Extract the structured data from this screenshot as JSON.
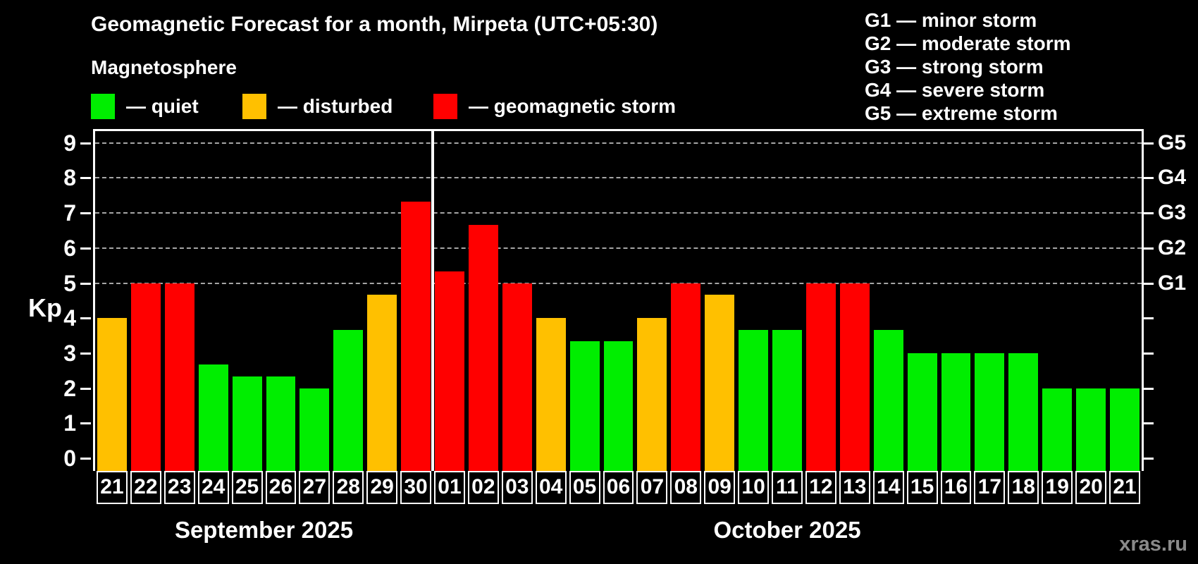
{
  "title": "Geomagnetic Forecast for a month, Mirpeta (UTC+05:30)",
  "subtitle": "Magnetosphere",
  "legend": [
    {
      "level": "quiet",
      "label": "— quiet"
    },
    {
      "level": "disturbed",
      "label": "— disturbed"
    },
    {
      "level": "storm",
      "label": "— geomagnetic storm"
    }
  ],
  "g_legend": [
    "G1 — minor storm",
    "G2 — moderate storm",
    "G3 — strong storm",
    "G4 — severe storm",
    "G5 — extreme storm"
  ],
  "colors": {
    "quiet": "#00ee00",
    "disturbed": "#ffc000",
    "storm": "#ff0000",
    "gridline": "#a6a6a6",
    "axis": "#ffffff",
    "watermark": "#8a8a8a",
    "background": "#000000"
  },
  "watermark": "xras.ru",
  "chart_data": {
    "type": "bar",
    "title": "Geomagnetic Forecast for a month, Mirpeta (UTC+05:30)",
    "xlabel": "",
    "ylabel": "Kp",
    "ylim": [
      0,
      9.4
    ],
    "yticks": [
      0,
      1,
      2,
      3,
      4,
      5,
      6,
      7,
      8,
      9
    ],
    "gridlines_at": [
      5,
      6,
      7,
      8,
      9
    ],
    "grid": "dashed, G-storm levels only",
    "legend_position": "top-left",
    "right_axis_labels": [
      {
        "kp": 5,
        "label": "G1"
      },
      {
        "kp": 6,
        "label": "G2"
      },
      {
        "kp": 7,
        "label": "G3"
      },
      {
        "kp": 8,
        "label": "G4"
      },
      {
        "kp": 9,
        "label": "G5"
      }
    ],
    "months": [
      {
        "name": "September 2025",
        "bars": [
          {
            "day": "21",
            "kp": 4.0,
            "level": "disturbed"
          },
          {
            "day": "22",
            "kp": 5.0,
            "level": "storm"
          },
          {
            "day": "23",
            "kp": 5.0,
            "level": "storm"
          },
          {
            "day": "24",
            "kp": 2.67,
            "level": "quiet"
          },
          {
            "day": "25",
            "kp": 2.33,
            "level": "quiet"
          },
          {
            "day": "26",
            "kp": 2.33,
            "level": "quiet"
          },
          {
            "day": "27",
            "kp": 2.0,
            "level": "quiet"
          },
          {
            "day": "28",
            "kp": 3.67,
            "level": "quiet"
          },
          {
            "day": "29",
            "kp": 4.67,
            "level": "disturbed"
          },
          {
            "day": "30",
            "kp": 7.33,
            "level": "storm"
          }
        ]
      },
      {
        "name": "October 2025",
        "bars": [
          {
            "day": "01",
            "kp": 5.33,
            "level": "storm"
          },
          {
            "day": "02",
            "kp": 6.67,
            "level": "storm"
          },
          {
            "day": "03",
            "kp": 5.0,
            "level": "storm"
          },
          {
            "day": "04",
            "kp": 4.0,
            "level": "disturbed"
          },
          {
            "day": "05",
            "kp": 3.33,
            "level": "quiet"
          },
          {
            "day": "06",
            "kp": 3.33,
            "level": "quiet"
          },
          {
            "day": "07",
            "kp": 4.0,
            "level": "disturbed"
          },
          {
            "day": "08",
            "kp": 5.0,
            "level": "storm"
          },
          {
            "day": "09",
            "kp": 4.67,
            "level": "disturbed"
          },
          {
            "day": "10",
            "kp": 3.67,
            "level": "quiet"
          },
          {
            "day": "11",
            "kp": 3.67,
            "level": "quiet"
          },
          {
            "day": "12",
            "kp": 5.0,
            "level": "storm"
          },
          {
            "day": "13",
            "kp": 5.0,
            "level": "storm"
          },
          {
            "day": "14",
            "kp": 3.67,
            "level": "quiet"
          },
          {
            "day": "15",
            "kp": 3.0,
            "level": "quiet"
          },
          {
            "day": "16",
            "kp": 3.0,
            "level": "quiet"
          },
          {
            "day": "17",
            "kp": 3.0,
            "level": "quiet"
          },
          {
            "day": "18",
            "kp": 3.0,
            "level": "quiet"
          },
          {
            "day": "19",
            "kp": 2.0,
            "level": "quiet"
          },
          {
            "day": "20",
            "kp": 2.0,
            "level": "quiet"
          },
          {
            "day": "21",
            "kp": 2.0,
            "level": "quiet"
          }
        ]
      }
    ]
  }
}
